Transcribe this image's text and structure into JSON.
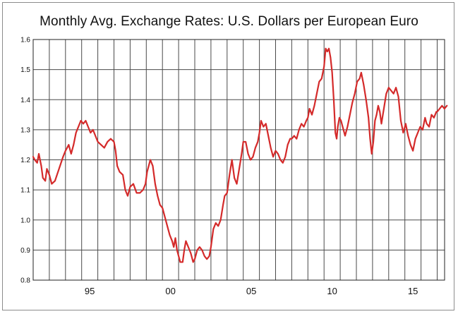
{
  "chart_data": {
    "type": "line",
    "title": "Monthly Avg. Exchange Rates: U.S. Dollars per European Euro",
    "xlabel": "",
    "ylabel": "",
    "xlim": [
      1992.0,
      2017.6
    ],
    "ylim": [
      0.8,
      1.6
    ],
    "y_ticks": [
      0.8,
      0.9,
      1.0,
      1.1,
      1.2,
      1.3,
      1.4,
      1.5,
      1.6
    ],
    "y_tick_labels": [
      "0.8",
      "0.9",
      "1.0",
      "1.1",
      "1.2",
      "1.3",
      "1.4",
      "1.5",
      "1.6"
    ],
    "x_gridlines": [
      1993,
      1994,
      1995,
      1996,
      1997,
      1998,
      1999,
      2000,
      2001,
      2002,
      2003,
      2004,
      2005,
      2006,
      2007,
      2008,
      2009,
      2010,
      2011,
      2012,
      2013,
      2014,
      2015,
      2016,
      2017
    ],
    "x_tick_labels": [
      {
        "x": 1995.0,
        "label": "95"
      },
      {
        "x": 2000.0,
        "label": "00"
      },
      {
        "x": 2005.0,
        "label": "05"
      },
      {
        "x": 2010.0,
        "label": "10"
      },
      {
        "x": 2015.0,
        "label": "15"
      }
    ],
    "grid": true,
    "series": [
      {
        "color": "#d42a2a",
        "points": [
          [
            1992.0,
            1.21
          ],
          [
            1992.1,
            1.2
          ],
          [
            1992.25,
            1.19
          ],
          [
            1992.35,
            1.22
          ],
          [
            1992.5,
            1.18
          ],
          [
            1992.6,
            1.14
          ],
          [
            1992.75,
            1.13
          ],
          [
            1992.85,
            1.17
          ],
          [
            1993.0,
            1.15
          ],
          [
            1993.15,
            1.12
          ],
          [
            1993.35,
            1.13
          ],
          [
            1993.6,
            1.17
          ],
          [
            1993.85,
            1.21
          ],
          [
            1994.0,
            1.23
          ],
          [
            1994.2,
            1.25
          ],
          [
            1994.35,
            1.22
          ],
          [
            1994.5,
            1.25
          ],
          [
            1994.65,
            1.29
          ],
          [
            1994.8,
            1.31
          ],
          [
            1994.95,
            1.33
          ],
          [
            1995.1,
            1.32
          ],
          [
            1995.25,
            1.33
          ],
          [
            1995.4,
            1.31
          ],
          [
            1995.55,
            1.29
          ],
          [
            1995.7,
            1.3
          ],
          [
            1995.85,
            1.28
          ],
          [
            1996.0,
            1.26
          ],
          [
            1996.2,
            1.25
          ],
          [
            1996.4,
            1.24
          ],
          [
            1996.6,
            1.26
          ],
          [
            1996.8,
            1.27
          ],
          [
            1997.0,
            1.26
          ],
          [
            1997.1,
            1.23
          ],
          [
            1997.2,
            1.18
          ],
          [
            1997.35,
            1.16
          ],
          [
            1997.55,
            1.15
          ],
          [
            1997.7,
            1.1
          ],
          [
            1997.85,
            1.08
          ],
          [
            1998.0,
            1.11
          ],
          [
            1998.2,
            1.12
          ],
          [
            1998.4,
            1.09
          ],
          [
            1998.6,
            1.09
          ],
          [
            1998.8,
            1.1
          ],
          [
            1998.95,
            1.12
          ],
          [
            1999.05,
            1.16
          ],
          [
            1999.15,
            1.18
          ],
          [
            1999.25,
            1.2
          ],
          [
            1999.4,
            1.18
          ],
          [
            1999.55,
            1.12
          ],
          [
            1999.7,
            1.08
          ],
          [
            1999.85,
            1.05
          ],
          [
            2000.0,
            1.04
          ],
          [
            2000.15,
            1.01
          ],
          [
            2000.3,
            0.98
          ],
          [
            2000.45,
            0.95
          ],
          [
            2000.6,
            0.93
          ],
          [
            2000.7,
            0.91
          ],
          [
            2000.8,
            0.94
          ],
          [
            2000.9,
            0.9
          ],
          [
            2001.0,
            0.88
          ],
          [
            2001.1,
            0.86
          ],
          [
            2001.25,
            0.86
          ],
          [
            2001.35,
            0.9
          ],
          [
            2001.45,
            0.93
          ],
          [
            2001.6,
            0.91
          ],
          [
            2001.75,
            0.89
          ],
          [
            2001.9,
            0.86
          ],
          [
            2002.0,
            0.87
          ],
          [
            2002.15,
            0.9
          ],
          [
            2002.3,
            0.91
          ],
          [
            2002.45,
            0.9
          ],
          [
            2002.6,
            0.88
          ],
          [
            2002.75,
            0.87
          ],
          [
            2002.9,
            0.88
          ],
          [
            2003.0,
            0.91
          ],
          [
            2003.15,
            0.97
          ],
          [
            2003.3,
            0.99
          ],
          [
            2003.45,
            0.98
          ],
          [
            2003.6,
            1.0
          ],
          [
            2003.75,
            1.05
          ],
          [
            2003.85,
            1.08
          ],
          [
            2004.0,
            1.09
          ],
          [
            2004.15,
            1.15
          ],
          [
            2004.3,
            1.2
          ],
          [
            2004.45,
            1.14
          ],
          [
            2004.6,
            1.12
          ],
          [
            2004.75,
            1.17
          ],
          [
            2004.9,
            1.22
          ],
          [
            2005.0,
            1.26
          ],
          [
            2005.15,
            1.26
          ],
          [
            2005.3,
            1.22
          ],
          [
            2005.45,
            1.2
          ],
          [
            2005.6,
            1.21
          ],
          [
            2005.75,
            1.24
          ],
          [
            2005.9,
            1.26
          ],
          [
            2006.0,
            1.29
          ],
          [
            2006.1,
            1.33
          ],
          [
            2006.25,
            1.31
          ],
          [
            2006.4,
            1.32
          ],
          [
            2006.55,
            1.28
          ],
          [
            2006.7,
            1.24
          ],
          [
            2006.85,
            1.21
          ],
          [
            2007.0,
            1.23
          ],
          [
            2007.15,
            1.22
          ],
          [
            2007.3,
            1.2
          ],
          [
            2007.45,
            1.19
          ],
          [
            2007.6,
            1.21
          ],
          [
            2007.75,
            1.25
          ],
          [
            2007.9,
            1.27
          ],
          [
            2008.0,
            1.27
          ],
          [
            2008.15,
            1.28
          ],
          [
            2008.3,
            1.27
          ],
          [
            2008.45,
            1.3
          ],
          [
            2008.6,
            1.32
          ],
          [
            2008.75,
            1.31
          ],
          [
            2008.9,
            1.33
          ],
          [
            2009.0,
            1.34
          ],
          [
            2009.1,
            1.37
          ],
          [
            2009.25,
            1.35
          ],
          [
            2009.4,
            1.38
          ],
          [
            2009.55,
            1.42
          ],
          [
            2009.7,
            1.46
          ],
          [
            2009.85,
            1.47
          ],
          [
            2010.0,
            1.51
          ],
          [
            2010.1,
            1.57
          ],
          [
            2010.2,
            1.56
          ],
          [
            2010.3,
            1.57
          ],
          [
            2010.4,
            1.54
          ],
          [
            2010.5,
            1.49
          ],
          [
            2010.6,
            1.4
          ],
          [
            2010.7,
            1.29
          ],
          [
            2010.78,
            1.27
          ],
          [
            2010.85,
            1.31
          ],
          [
            2010.95,
            1.34
          ],
          [
            2011.05,
            1.33
          ],
          [
            2011.15,
            1.31
          ],
          [
            2011.3,
            1.28
          ],
          [
            2011.45,
            1.31
          ],
          [
            2011.6,
            1.35
          ],
          [
            2011.75,
            1.39
          ],
          [
            2011.9,
            1.42
          ],
          [
            2012.05,
            1.46
          ],
          [
            2012.2,
            1.47
          ],
          [
            2012.3,
            1.49
          ],
          [
            2012.45,
            1.45
          ],
          [
            2012.6,
            1.4
          ],
          [
            2012.75,
            1.34
          ],
          [
            2012.85,
            1.27
          ],
          [
            2012.95,
            1.22
          ],
          [
            2013.05,
            1.26
          ],
          [
            2013.15,
            1.33
          ],
          [
            2013.25,
            1.35
          ],
          [
            2013.35,
            1.38
          ],
          [
            2013.45,
            1.36
          ],
          [
            2013.55,
            1.32
          ],
          [
            2013.7,
            1.37
          ],
          [
            2013.85,
            1.42
          ],
          [
            2014.0,
            1.44
          ],
          [
            2014.15,
            1.43
          ],
          [
            2014.3,
            1.42
          ],
          [
            2014.45,
            1.44
          ],
          [
            2014.6,
            1.41
          ],
          [
            2014.75,
            1.33
          ],
          [
            2014.9,
            1.29
          ],
          [
            2015.05,
            1.32
          ],
          [
            2015.2,
            1.28
          ],
          [
            2015.35,
            1.25
          ],
          [
            2015.5,
            1.23
          ],
          [
            2015.65,
            1.27
          ],
          [
            2015.8,
            1.29
          ],
          [
            2015.95,
            1.31
          ],
          [
            2016.1,
            1.3
          ],
          [
            2016.25,
            1.34
          ],
          [
            2016.35,
            1.32
          ],
          [
            2016.5,
            1.31
          ],
          [
            2016.65,
            1.35
          ],
          [
            2016.8,
            1.34
          ],
          [
            2016.95,
            1.36
          ],
          [
            2017.0,
            1.36
          ],
          [
            2017.15,
            1.37
          ],
          [
            2017.3,
            1.38
          ],
          [
            2017.45,
            1.37
          ],
          [
            2017.6,
            1.38
          ]
        ]
      }
    ]
  }
}
